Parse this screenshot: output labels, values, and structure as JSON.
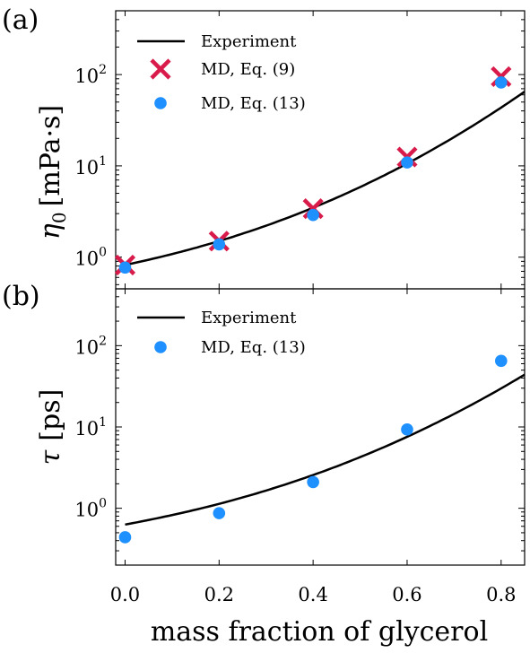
{
  "chart_data": [
    {
      "panel": "(a)",
      "type": "line",
      "ylabel_symbol": "η",
      "ylabel_sub": "0",
      "ylabel_unit": "[mPa·s]",
      "yscale": "log",
      "ylim": [
        0.45,
        500
      ],
      "xlim": [
        -0.02,
        0.85
      ],
      "yticks": [
        1,
        10,
        100
      ],
      "ytick_labels": [
        {
          "base": "10",
          "exp": "0"
        },
        {
          "base": "10",
          "exp": "1"
        },
        {
          "base": "10",
          "exp": "2"
        }
      ],
      "legend_position": "top-left",
      "series": [
        {
          "name": "Experiment",
          "kind": "line",
          "color": "#000000",
          "x_range": [
            0.0,
            0.85
          ],
          "y_at_x0": 0.82,
          "y_at_xmax": 65
        },
        {
          "name": "MD, Eq. (9)",
          "kind": "x-marker",
          "color": "#d81b4a",
          "x": [
            0.0,
            0.2,
            0.4,
            0.6,
            0.8
          ],
          "y": [
            0.82,
            1.5,
            3.4,
            12.5,
            95
          ]
        },
        {
          "name": "MD, Eq. (13)",
          "kind": "dot",
          "color": "#1e90ff",
          "x": [
            0.0,
            0.2,
            0.4,
            0.6,
            0.8
          ],
          "y": [
            0.77,
            1.38,
            2.9,
            10.9,
            82
          ]
        }
      ]
    },
    {
      "panel": "(b)",
      "type": "line",
      "ylabel_symbol": "τ",
      "ylabel_unit": "[ps]",
      "yscale": "log",
      "ylim": [
        0.2,
        500
      ],
      "xlim": [
        -0.02,
        0.85
      ],
      "yticks": [
        1,
        10,
        100
      ],
      "ytick_labels": [
        {
          "base": "10",
          "exp": "0"
        },
        {
          "base": "10",
          "exp": "1"
        },
        {
          "base": "10",
          "exp": "2"
        }
      ],
      "xticks": [
        0.0,
        0.2,
        0.4,
        0.6,
        0.8
      ],
      "xtick_labels": [
        "0.0",
        "0.2",
        "0.4",
        "0.6",
        "0.8"
      ],
      "xlabel": "mass fraction of glycerol",
      "legend_position": "top-left",
      "series": [
        {
          "name": "Experiment",
          "kind": "line",
          "color": "#000000",
          "x_range": [
            0.0,
            0.85
          ],
          "y_at_x0": 0.63,
          "y_at_xmax": 44
        },
        {
          "name": "MD, Eq. (13)",
          "kind": "dot",
          "color": "#1e90ff",
          "x": [
            0.0,
            0.2,
            0.4,
            0.6,
            0.8
          ],
          "y": [
            0.44,
            0.87,
            2.1,
            9.3,
            65
          ]
        }
      ]
    }
  ]
}
